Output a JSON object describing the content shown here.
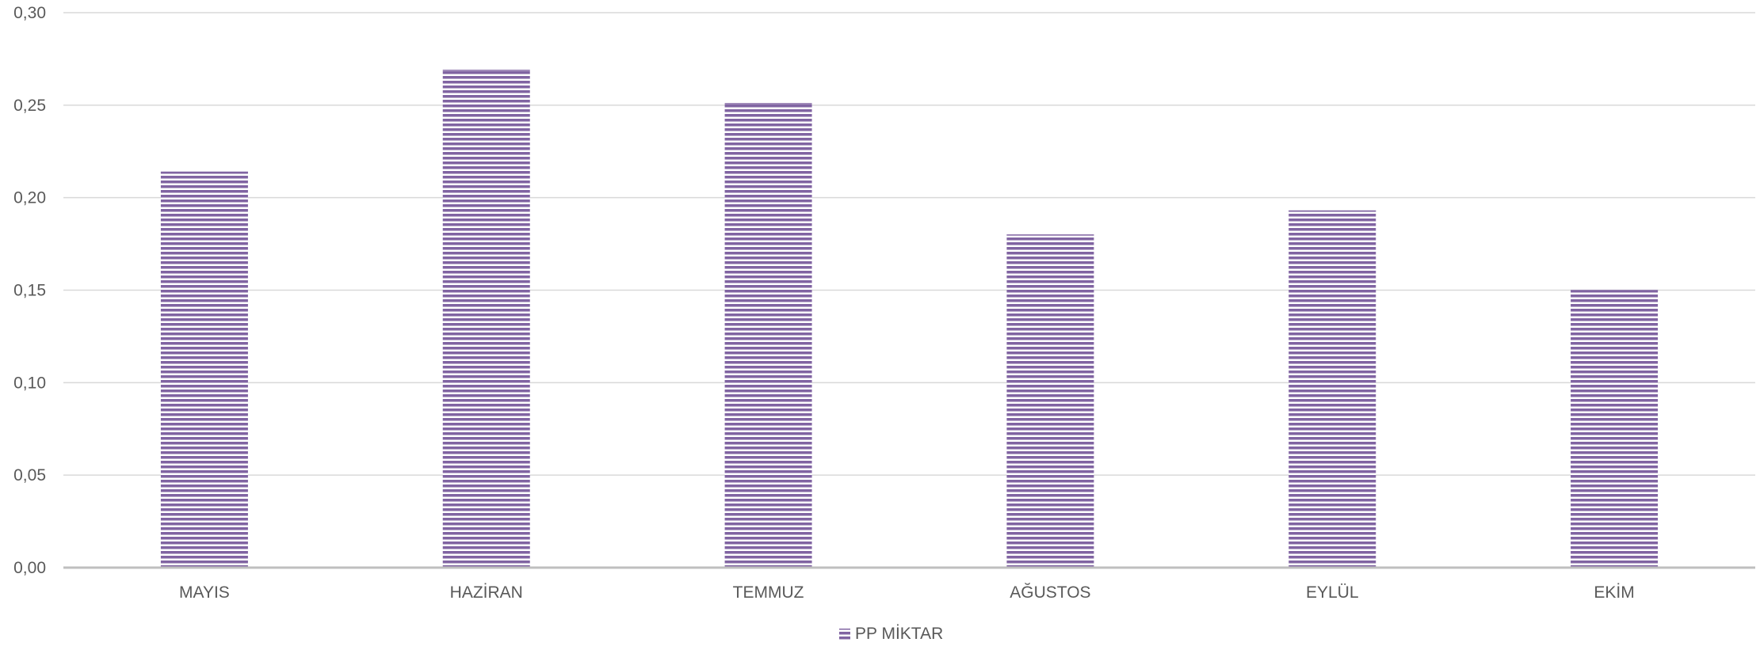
{
  "chart_data": {
    "type": "bar",
    "categories": [
      "MAYIS",
      "HAZİRAN",
      "TEMMUZ",
      "AĞUSTOS",
      "EYLÜL",
      "EKİM"
    ],
    "series": [
      {
        "name": "PP MİKTAR",
        "values": [
          0.214,
          0.269,
          0.251,
          0.18,
          0.193,
          0.15
        ]
      }
    ],
    "ylim": [
      0,
      0.3
    ],
    "yticks": [
      "0,00",
      "0,05",
      "0,10",
      "0,15",
      "0,20",
      "0,25",
      "0,30"
    ],
    "grid": true,
    "legend_position": "bottom",
    "colors": {
      "bar_stripe": "#8064a2",
      "bar_bg": "#ffffff",
      "grid": "#d9d9d9",
      "axis": "#bfbfbf",
      "text": "#595959"
    }
  }
}
